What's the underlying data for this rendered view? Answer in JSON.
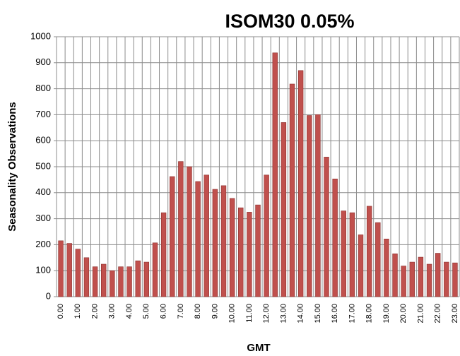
{
  "chart_data": {
    "type": "bar",
    "title": "ISOM30 0.05%",
    "x_label": "GMT",
    "y_label": "Seasonality Observations",
    "categories": [
      "0.00",
      null,
      "1.00",
      null,
      "2.00",
      null,
      "3.00",
      null,
      "4.00",
      null,
      "5.00",
      null,
      "6.00",
      null,
      "7.00",
      null,
      "8.00",
      null,
      "9.00",
      null,
      "10.00",
      null,
      "11.00",
      null,
      "12.00",
      null,
      "13.00",
      null,
      "14.00",
      null,
      "15.00",
      null,
      "16.00",
      null,
      "17.00",
      null,
      "18.00",
      null,
      "19.00",
      null,
      "20.00",
      null,
      "21.00",
      null,
      "22.00",
      null,
      "23.00"
    ],
    "values": [
      215,
      205,
      183,
      150,
      115,
      125,
      100,
      115,
      115,
      138,
      133,
      207,
      323,
      462,
      520,
      500,
      443,
      468,
      413,
      427,
      378,
      342,
      325,
      353,
      468,
      938,
      670,
      818,
      870,
      697,
      700,
      537,
      453,
      330,
      323,
      238,
      348,
      285,
      222,
      165,
      118,
      133,
      152,
      125,
      167,
      133,
      130
    ],
    "color": "#c0504d",
    "ylim": [
      0,
      1000
    ],
    "yticks": [
      0,
      100,
      200,
      300,
      400,
      500,
      600,
      700,
      800,
      900,
      1000
    ],
    "grid": true
  }
}
